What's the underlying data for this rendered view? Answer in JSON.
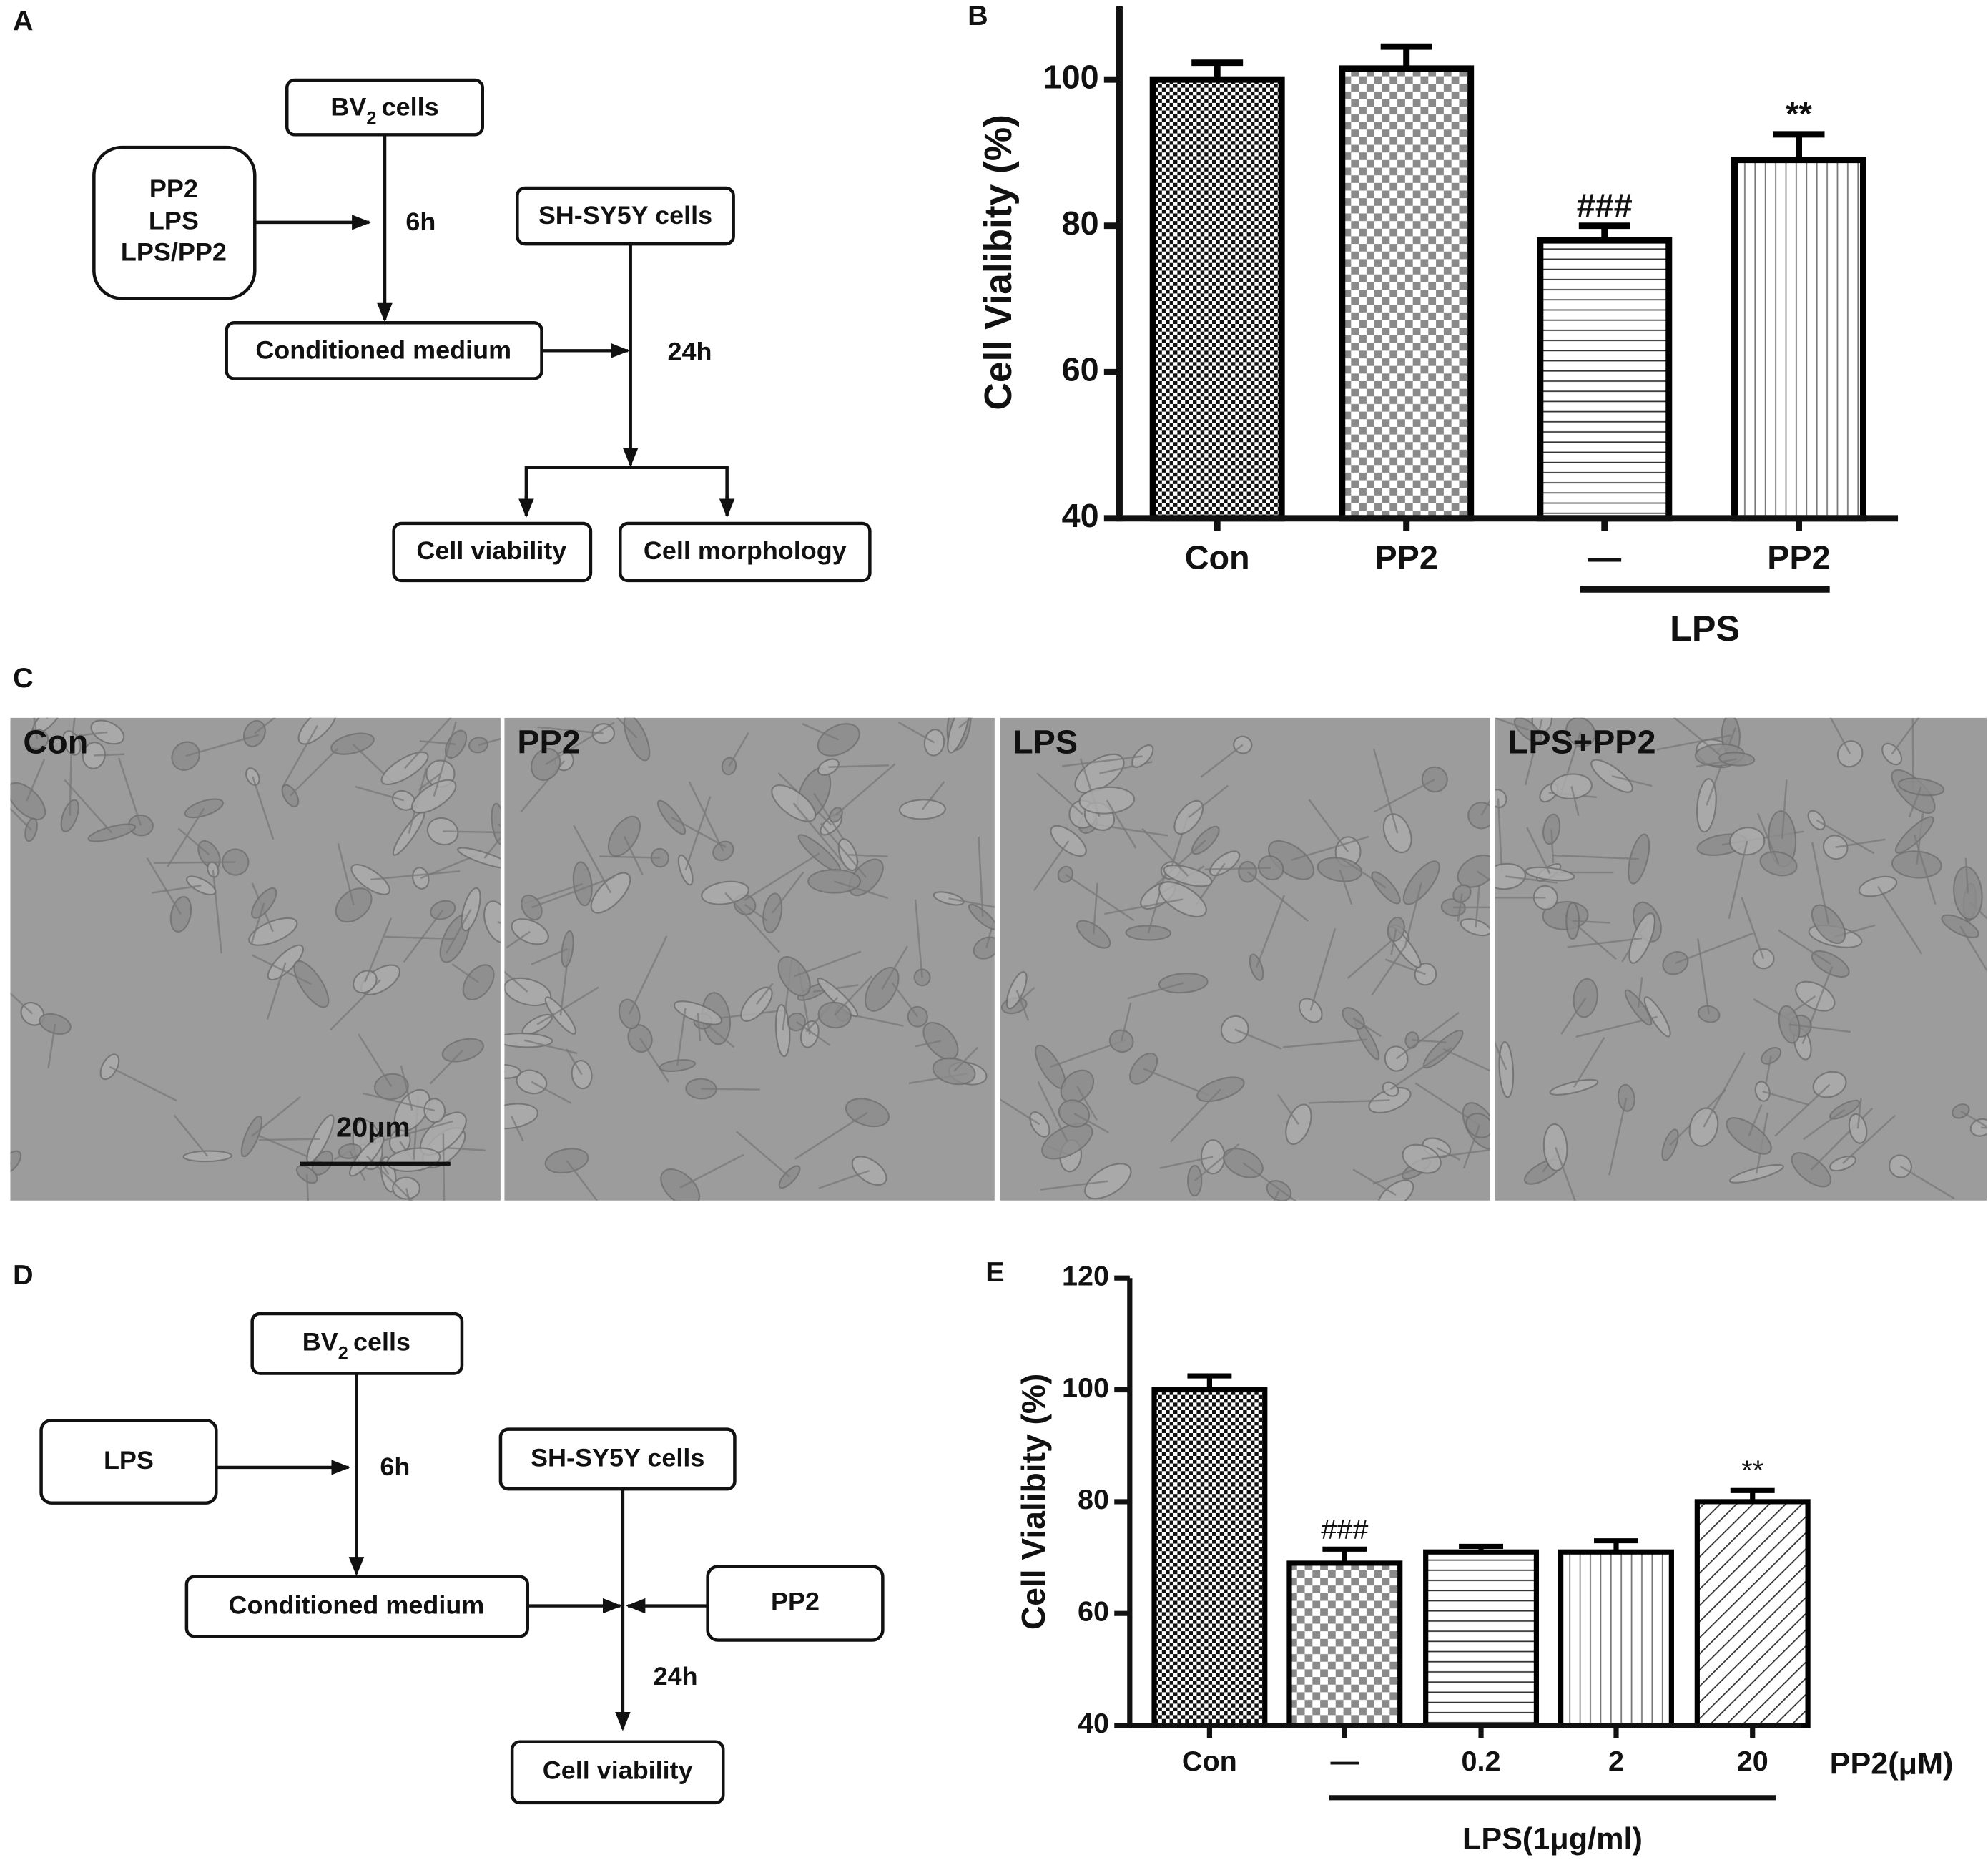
{
  "diagram_a": {
    "panel_label": "A",
    "bv2": {
      "main": "BV",
      "sub": "2",
      "rest": "cells"
    },
    "treatments": [
      "PP2",
      "LPS",
      "LPS/PP2"
    ],
    "sh_sy5y": "SH-SY5Y cells",
    "conditioned_medium": "Conditioned medium",
    "time_1": "6h",
    "time_2": "24h",
    "outputs": [
      "Cell viability",
      "Cell morphology"
    ]
  },
  "micrographs": {
    "panel_label": "C",
    "panels": [
      "Con",
      "PP2",
      "LPS",
      "LPS+PP2"
    ],
    "scale_bar": "20μm"
  },
  "diagram_d": {
    "panel_label": "D",
    "bv2": {
      "main": "BV",
      "sub": "2",
      "rest": "cells"
    },
    "treatment": "LPS",
    "sh_sy5y": "SH-SY5Y cells",
    "conditioned_medium": "Conditioned medium",
    "inhibitor": "PP2",
    "time_1": "6h",
    "time_2": "24h",
    "output": "Cell viability"
  },
  "chart_data": [
    {
      "type": "bar",
      "panel_label": "B",
      "y_label": "Cell Vialibity (%)",
      "categories": [
        "Con",
        "PP2",
        "—",
        "PP2"
      ],
      "values": [
        100,
        101.5,
        78,
        89
      ],
      "errors": [
        2.3,
        3,
        2,
        3.5
      ],
      "value_annotations": [
        null,
        null,
        "###",
        "**"
      ],
      "patterns": [
        "checker-fine",
        "checker",
        "hlines",
        "vlines"
      ],
      "color": "#000000",
      "group": {
        "label": "LPS",
        "from": 2,
        "to": 3
      },
      "ylim": [
        40,
        110
      ],
      "yticks": [
        40,
        60,
        80,
        100
      ]
    },
    {
      "type": "bar",
      "panel_label": "E",
      "y_label": "Cell Vialibity (%)",
      "x_label": "PP2(μM)",
      "categories": [
        "Con",
        "—",
        "0.2",
        "2",
        "20"
      ],
      "values": [
        100,
        69,
        71,
        71,
        80
      ],
      "errors": [
        2.5,
        2.5,
        1,
        2,
        2
      ],
      "value_annotations": [
        null,
        "###",
        null,
        null,
        "**"
      ],
      "patterns": [
        "checker-fine",
        "checker",
        "hlines",
        "vlines",
        "diagonal"
      ],
      "color": "#000000",
      "group": {
        "label": "LPS(1μg/ml)",
        "from": 1,
        "to": 4
      },
      "ylim": [
        40,
        120
      ],
      "yticks": [
        40,
        60,
        80,
        100,
        120
      ]
    }
  ]
}
